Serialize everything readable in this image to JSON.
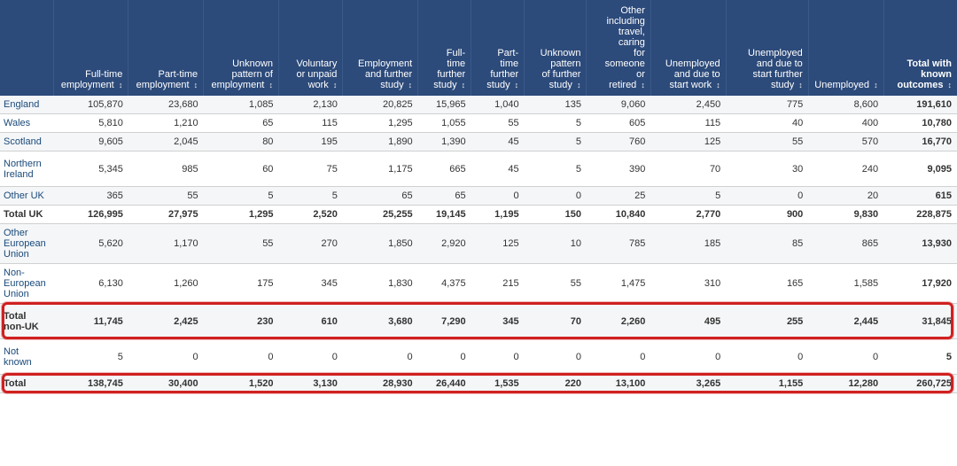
{
  "table": {
    "header_bg": "#2c4a7a",
    "header_fg": "#ffffff",
    "row_odd_bg": "#f4f6f8",
    "row_even_bg": "#ffffff",
    "border_color": "#d0d0d0",
    "highlight_border": "#d02020",
    "columns": [
      {
        "label": "",
        "bold": false
      },
      {
        "label": "Full-time employment",
        "sort": true
      },
      {
        "label": "Part-time employment",
        "sort": true
      },
      {
        "label": "Unknown pattern of employment",
        "sort": true
      },
      {
        "label": "Voluntary or unpaid work",
        "sort": true
      },
      {
        "label": "Employment and further study",
        "sort": true
      },
      {
        "label": "Full-time further study",
        "sort": true
      },
      {
        "label": "Part-time further study",
        "sort": true
      },
      {
        "label": "Unknown pattern of further study",
        "sort": true
      },
      {
        "label": "Other including travel, caring for someone or retired",
        "sort": true
      },
      {
        "label": "Unemployed and due to start work",
        "sort": true
      },
      {
        "label": "Unemployed and due to start further study",
        "sort": true
      },
      {
        "label": "Unemployed",
        "sort": true
      },
      {
        "label": "Total with known outcomes",
        "sort": true,
        "bold": true
      }
    ],
    "rows": [
      {
        "label": "England",
        "cells": [
          "105,870",
          "23,680",
          "1,085",
          "2,130",
          "20,825",
          "15,965",
          "1,040",
          "135",
          "9,060",
          "2,450",
          "775",
          "8,600",
          "191,610"
        ]
      },
      {
        "label": "Wales",
        "cells": [
          "5,810",
          "1,210",
          "65",
          "115",
          "1,295",
          "1,055",
          "55",
          "5",
          "605",
          "115",
          "40",
          "400",
          "10,780"
        ]
      },
      {
        "label": "Scotland",
        "cells": [
          "9,605",
          "2,045",
          "80",
          "195",
          "1,890",
          "1,390",
          "45",
          "5",
          "760",
          "125",
          "55",
          "570",
          "16,770"
        ]
      },
      {
        "label": "Northern Ireland",
        "cells": [
          "5,345",
          "985",
          "60",
          "75",
          "1,175",
          "665",
          "45",
          "5",
          "390",
          "70",
          "30",
          "240",
          "9,095"
        ],
        "tall": true
      },
      {
        "label": "Other UK",
        "cells": [
          "365",
          "55",
          "5",
          "5",
          "65",
          "65",
          "0",
          "0",
          "25",
          "5",
          "0",
          "20",
          "615"
        ]
      },
      {
        "label": "Total UK",
        "cells": [
          "126,995",
          "27,975",
          "1,295",
          "2,520",
          "25,255",
          "19,145",
          "1,195",
          "150",
          "10,840",
          "2,770",
          "900",
          "9,830",
          "228,875"
        ],
        "bold": true
      },
      {
        "label": "Other European Union",
        "cells": [
          "5,620",
          "1,170",
          "55",
          "270",
          "1,850",
          "2,920",
          "125",
          "10",
          "785",
          "185",
          "85",
          "865",
          "13,930"
        ],
        "tall": true
      },
      {
        "label": "Non-European Union",
        "cells": [
          "6,130",
          "1,260",
          "175",
          "345",
          "1,830",
          "4,375",
          "215",
          "55",
          "1,475",
          "310",
          "165",
          "1,585",
          "17,920"
        ],
        "tall": true
      },
      {
        "label": "Total non-UK",
        "cells": [
          "11,745",
          "2,425",
          "230",
          "610",
          "3,680",
          "7,290",
          "345",
          "70",
          "2,260",
          "495",
          "255",
          "2,445",
          "31,845"
        ],
        "bold": true,
        "tall": true,
        "highlight": true
      },
      {
        "label": "Not known",
        "cells": [
          "5",
          "0",
          "0",
          "0",
          "0",
          "0",
          "0",
          "0",
          "0",
          "0",
          "0",
          "0",
          "5"
        ],
        "tall": true
      },
      {
        "label": "Total",
        "cells": [
          "138,745",
          "30,400",
          "1,520",
          "3,130",
          "28,930",
          "26,440",
          "1,535",
          "220",
          "13,100",
          "3,265",
          "1,155",
          "12,280",
          "260,725"
        ],
        "bold": true,
        "highlight": true
      }
    ]
  }
}
